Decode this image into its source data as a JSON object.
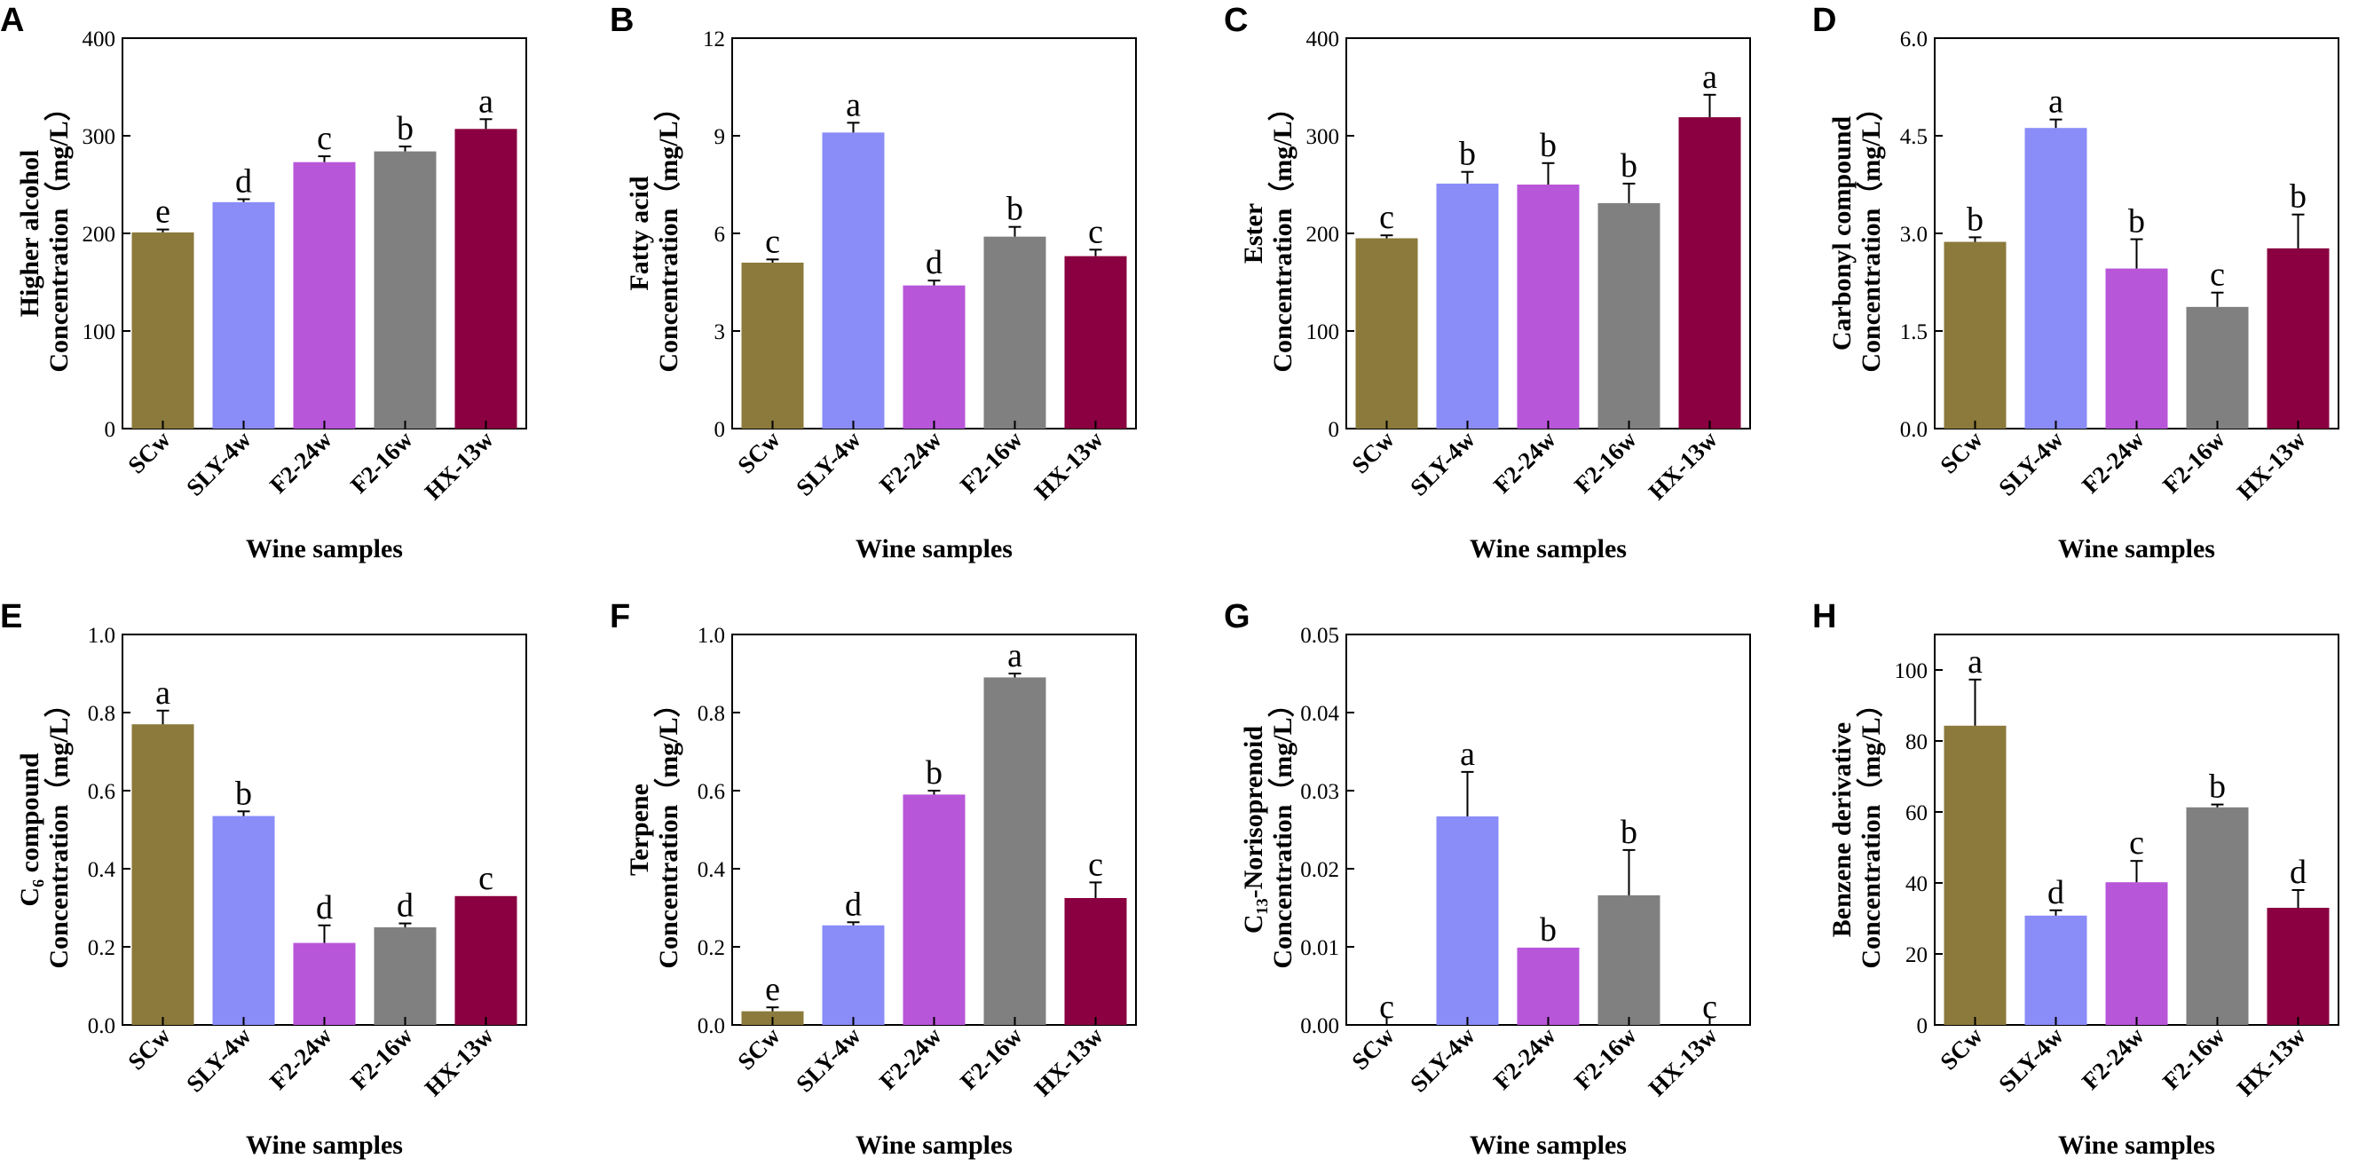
{
  "colors": {
    "SCw": "#8b7a3b",
    "SLY-4w": "#8a8cf8",
    "F2-24w": "#b856d9",
    "F2-16w": "#808080",
    "HX-13w": "#8a0040"
  },
  "chart_data": [
    {
      "panel": "A",
      "type": "bar",
      "title_line1": "Higher alcohol",
      "title_line2": "Concentration（mg/L）",
      "xlabel": "Wine samples",
      "categories": [
        "SCw",
        "SLY-4w",
        "F2-24w",
        "F2-16w",
        "HX-13w"
      ],
      "values": [
        201,
        232,
        273,
        284,
        307
      ],
      "errors": [
        3,
        3,
        6,
        5,
        10
      ],
      "letters": [
        "e",
        "d",
        "c",
        "b",
        "a"
      ],
      "ylim": [
        0,
        400
      ],
      "yticks": [
        "0",
        "100",
        "200",
        "300",
        "400"
      ]
    },
    {
      "panel": "B",
      "type": "bar",
      "title_line1": "Fatty acid",
      "title_line2": "Concentration（mg/L）",
      "xlabel": "Wine samples",
      "categories": [
        "SCw",
        "SLY-4w",
        "F2-24w",
        "F2-16w",
        "HX-13w"
      ],
      "values": [
        5.1,
        9.1,
        4.4,
        5.9,
        5.3
      ],
      "errors": [
        0.1,
        0.3,
        0.15,
        0.3,
        0.2
      ],
      "letters": [
        "c",
        "a",
        "d",
        "b",
        "c"
      ],
      "ylim": [
        0,
        12
      ],
      "yticks": [
        "0",
        "3",
        "6",
        "9",
        "12"
      ]
    },
    {
      "panel": "C",
      "type": "bar",
      "title_line1": "Ester",
      "title_line2": "Concentration（mg/L）",
      "xlabel": "Wine samples",
      "categories": [
        "SCw",
        "SLY-4w",
        "F2-24w",
        "F2-16w",
        "HX-13w"
      ],
      "values": [
        195,
        251,
        250,
        231,
        319
      ],
      "errors": [
        3,
        12,
        22,
        20,
        23
      ],
      "letters": [
        "c",
        "b",
        "b",
        "b",
        "a"
      ],
      "ylim": [
        0,
        400
      ],
      "yticks": [
        "0",
        "100",
        "200",
        "300",
        "400"
      ]
    },
    {
      "panel": "D",
      "type": "bar",
      "title_line1": "Carbonyl compound",
      "title_line2": "Concentration（mg/L）",
      "xlabel": "Wine samples",
      "categories": [
        "SCw",
        "SLY-4w",
        "F2-24w",
        "F2-16w",
        "HX-13w"
      ],
      "values": [
        2.87,
        4.62,
        2.46,
        1.87,
        2.77
      ],
      "errors": [
        0.07,
        0.13,
        0.45,
        0.22,
        0.52
      ],
      "letters": [
        "b",
        "a",
        "b",
        "c",
        "b"
      ],
      "ylim": [
        0,
        6
      ],
      "yticks": [
        "0.0",
        "1.5",
        "3.0",
        "4.5",
        "6.0"
      ]
    },
    {
      "panel": "E",
      "type": "bar",
      "title_line1": "C₆ compound",
      "title_line2": "Concentration（mg/L）",
      "xlabel": "Wine samples",
      "categories": [
        "SCw",
        "SLY-4w",
        "F2-24w",
        "F2-16w",
        "HX-13w"
      ],
      "values": [
        0.77,
        0.535,
        0.21,
        0.25,
        0.33
      ],
      "errors": [
        0.035,
        0.012,
        0.045,
        0.01,
        0.0
      ],
      "letters": [
        "a",
        "b",
        "d",
        "d",
        "c"
      ],
      "ylim": [
        0,
        1.0
      ],
      "yticks": [
        "0.0",
        "0.2",
        "0.4",
        "0.6",
        "0.8",
        "1.0"
      ]
    },
    {
      "panel": "F",
      "type": "bar",
      "title_line1": "Terpene",
      "title_line2": "Concentration（mg/L）",
      "xlabel": "Wine samples",
      "categories": [
        "SCw",
        "SLY-4w",
        "F2-24w",
        "F2-16w",
        "HX-13w"
      ],
      "values": [
        0.035,
        0.255,
        0.59,
        0.89,
        0.325
      ],
      "errors": [
        0.01,
        0.008,
        0.01,
        0.01,
        0.04
      ],
      "letters": [
        "e",
        "d",
        "b",
        "a",
        "c"
      ],
      "ylim": [
        0,
        1.0
      ],
      "yticks": [
        "0.0",
        "0.2",
        "0.4",
        "0.6",
        "0.8",
        "1.0"
      ]
    },
    {
      "panel": "G",
      "type": "bar",
      "title_line1": "C₁₃-Norisoprenoid",
      "title_line2": "Concentration（mg/L）",
      "xlabel": "Wine samples",
      "categories": [
        "SCw",
        "SLY-4w",
        "F2-24w",
        "F2-16w",
        "HX-13w"
      ],
      "values": [
        0.0,
        0.0267,
        0.0099,
        0.0166,
        0.0
      ],
      "errors": [
        0.0,
        0.0057,
        0.0,
        0.0058,
        0.0
      ],
      "letters": [
        "c",
        "a",
        "b",
        "b",
        "c"
      ],
      "ylim": [
        0,
        0.05
      ],
      "yticks": [
        "0.00",
        "0.01",
        "0.02",
        "0.03",
        "0.04",
        "0.05"
      ]
    },
    {
      "panel": "H",
      "type": "bar",
      "title_line1": "Benzene derivative",
      "title_line2": "Concentration（mg/L）",
      "xlabel": "Wine samples",
      "categories": [
        "SCw",
        "SLY-4w",
        "F2-24w",
        "F2-16w",
        "HX-13w"
      ],
      "values": [
        84.3,
        30.8,
        40.2,
        61.3,
        33.0
      ],
      "errors": [
        13,
        1.5,
        6,
        0.8,
        5
      ],
      "letters": [
        "a",
        "d",
        "c",
        "b",
        "d"
      ],
      "ylim": [
        0,
        110
      ],
      "yticks": [
        "0",
        "20",
        "40",
        "60",
        "80",
        "100"
      ]
    }
  ]
}
